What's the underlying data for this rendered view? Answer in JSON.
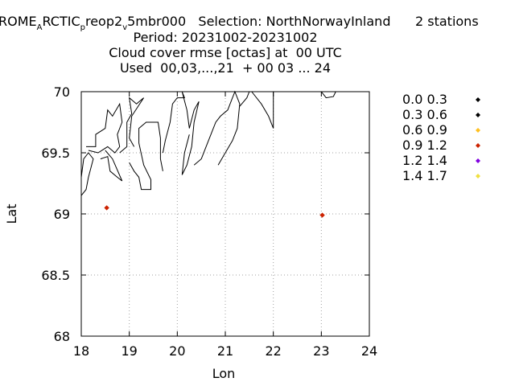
{
  "chart_data": {
    "type": "scatter",
    "title": {
      "line1": {
        "p1": "ROME",
        "p1_sub": "A",
        "p2": "RCTIC",
        "p2_sub": "p",
        "p3": "reop2",
        "p3_sub": "v",
        "p4": "5mbr000   Selection: NorthNorwayInland      2 stations"
      },
      "line2": "Period: 20231002-20231002",
      "line3": "Cloud cover rmse [octas] at  00 UTC",
      "line4": "Used  00,03,...,21  + 00 03 ... 24"
    },
    "xlabel": "Lon",
    "ylabel": "Lat",
    "xlim": [
      18,
      24
    ],
    "ylim": [
      68,
      70
    ],
    "xticks": [
      "18",
      "19",
      "20",
      "21",
      "22",
      "23",
      "24"
    ],
    "yticks": [
      "68",
      "68.5",
      "69",
      "69.5",
      "70"
    ],
    "grid": true,
    "legend": [
      {
        "label": "0.0 0.3",
        "color": "#000000"
      },
      {
        "label": "0.3 0.6",
        "color": "#000000"
      },
      {
        "label": "0.6 0.9",
        "color": "#ffc020"
      },
      {
        "label": "0.9 1.2",
        "color": "#cc2200"
      },
      {
        "label": "1.2 1.4",
        "color": "#8000e0"
      },
      {
        "label": "1.4 1.7",
        "color": "#f0e040"
      }
    ],
    "points": [
      {
        "lon": 18.53,
        "lat": 69.05,
        "color": "#cc2200"
      },
      {
        "lon": 23.02,
        "lat": 68.99,
        "color": "#cc2200"
      }
    ],
    "coastline": [
      [
        [
          18.0,
          69.15
        ],
        [
          18.1,
          69.2
        ],
        [
          18.15,
          69.3
        ],
        [
          18.25,
          69.45
        ],
        [
          18.15,
          69.5
        ],
        [
          18.05,
          69.45
        ],
        [
          18.0,
          69.3
        ]
      ],
      [
        [
          18.1,
          69.55
        ],
        [
          18.3,
          69.55
        ],
        [
          18.3,
          69.65
        ],
        [
          18.5,
          69.7
        ],
        [
          18.55,
          69.85
        ],
        [
          18.65,
          69.8
        ],
        [
          18.8,
          69.9
        ],
        [
          18.85,
          69.75
        ],
        [
          18.75,
          69.65
        ],
        [
          18.8,
          69.55
        ],
        [
          18.7,
          69.5
        ],
        [
          18.55,
          69.55
        ],
        [
          18.35,
          69.5
        ],
        [
          18.15,
          69.52
        ]
      ],
      [
        [
          18.4,
          69.45
        ],
        [
          18.55,
          69.47
        ],
        [
          18.6,
          69.35
        ],
        [
          18.75,
          69.3
        ],
        [
          18.85,
          69.27
        ],
        [
          18.65,
          69.45
        ],
        [
          18.5,
          69.52
        ]
      ],
      [
        [
          18.8,
          69.5
        ],
        [
          18.95,
          69.55
        ],
        [
          18.95,
          69.75
        ],
        [
          19.05,
          69.82
        ],
        [
          19.0,
          69.95
        ],
        [
          19.15,
          69.9
        ],
        [
          19.3,
          69.95
        ],
        [
          19.05,
          69.8
        ],
        [
          19.0,
          69.62
        ],
        [
          19.1,
          69.55
        ]
      ],
      [
        [
          19.0,
          69.42
        ],
        [
          19.1,
          69.35
        ],
        [
          19.2,
          69.3
        ],
        [
          19.25,
          69.2
        ],
        [
          19.45,
          69.2
        ],
        [
          19.45,
          69.28
        ],
        [
          19.3,
          69.4
        ],
        [
          19.2,
          69.58
        ],
        [
          19.2,
          69.7
        ],
        [
          19.35,
          69.75
        ],
        [
          19.6,
          69.75
        ],
        [
          19.65,
          69.62
        ],
        [
          19.65,
          69.45
        ],
        [
          19.7,
          69.35
        ]
      ],
      [
        [
          19.7,
          69.5
        ],
        [
          19.75,
          69.6
        ],
        [
          19.85,
          69.75
        ],
        [
          19.9,
          69.9
        ],
        [
          20.0,
          69.95
        ],
        [
          20.15,
          69.95
        ],
        [
          20.1,
          70.0
        ],
        [
          20.2,
          69.85
        ],
        [
          20.25,
          69.7
        ],
        [
          20.35,
          69.85
        ],
        [
          20.45,
          69.92
        ],
        [
          20.35,
          69.75
        ],
        [
          20.3,
          69.55
        ],
        [
          20.2,
          69.4
        ],
        [
          20.1,
          69.32
        ],
        [
          20.15,
          69.5
        ],
        [
          20.25,
          69.65
        ]
      ],
      [
        [
          20.35,
          69.4
        ],
        [
          20.5,
          69.45
        ],
        [
          20.6,
          69.55
        ],
        [
          20.7,
          69.65
        ],
        [
          20.8,
          69.75
        ],
        [
          20.9,
          69.8
        ],
        [
          21.05,
          69.85
        ],
        [
          21.15,
          69.95
        ],
        [
          21.2,
          70.0
        ],
        [
          21.3,
          69.9
        ],
        [
          21.25,
          69.7
        ],
        [
          21.15,
          69.6
        ],
        [
          21.0,
          69.5
        ],
        [
          20.85,
          69.4
        ]
      ],
      [
        [
          21.3,
          69.88
        ],
        [
          21.45,
          69.95
        ],
        [
          21.5,
          70.0
        ]
      ],
      [
        [
          21.55,
          70.0
        ],
        [
          21.75,
          69.9
        ],
        [
          21.9,
          69.8
        ],
        [
          22.0,
          69.7
        ],
        [
          22.0,
          70.0
        ]
      ],
      [
        [
          23.0,
          70.0
        ],
        [
          23.1,
          69.95
        ],
        [
          23.25,
          69.96
        ],
        [
          23.3,
          70.0
        ]
      ]
    ]
  }
}
